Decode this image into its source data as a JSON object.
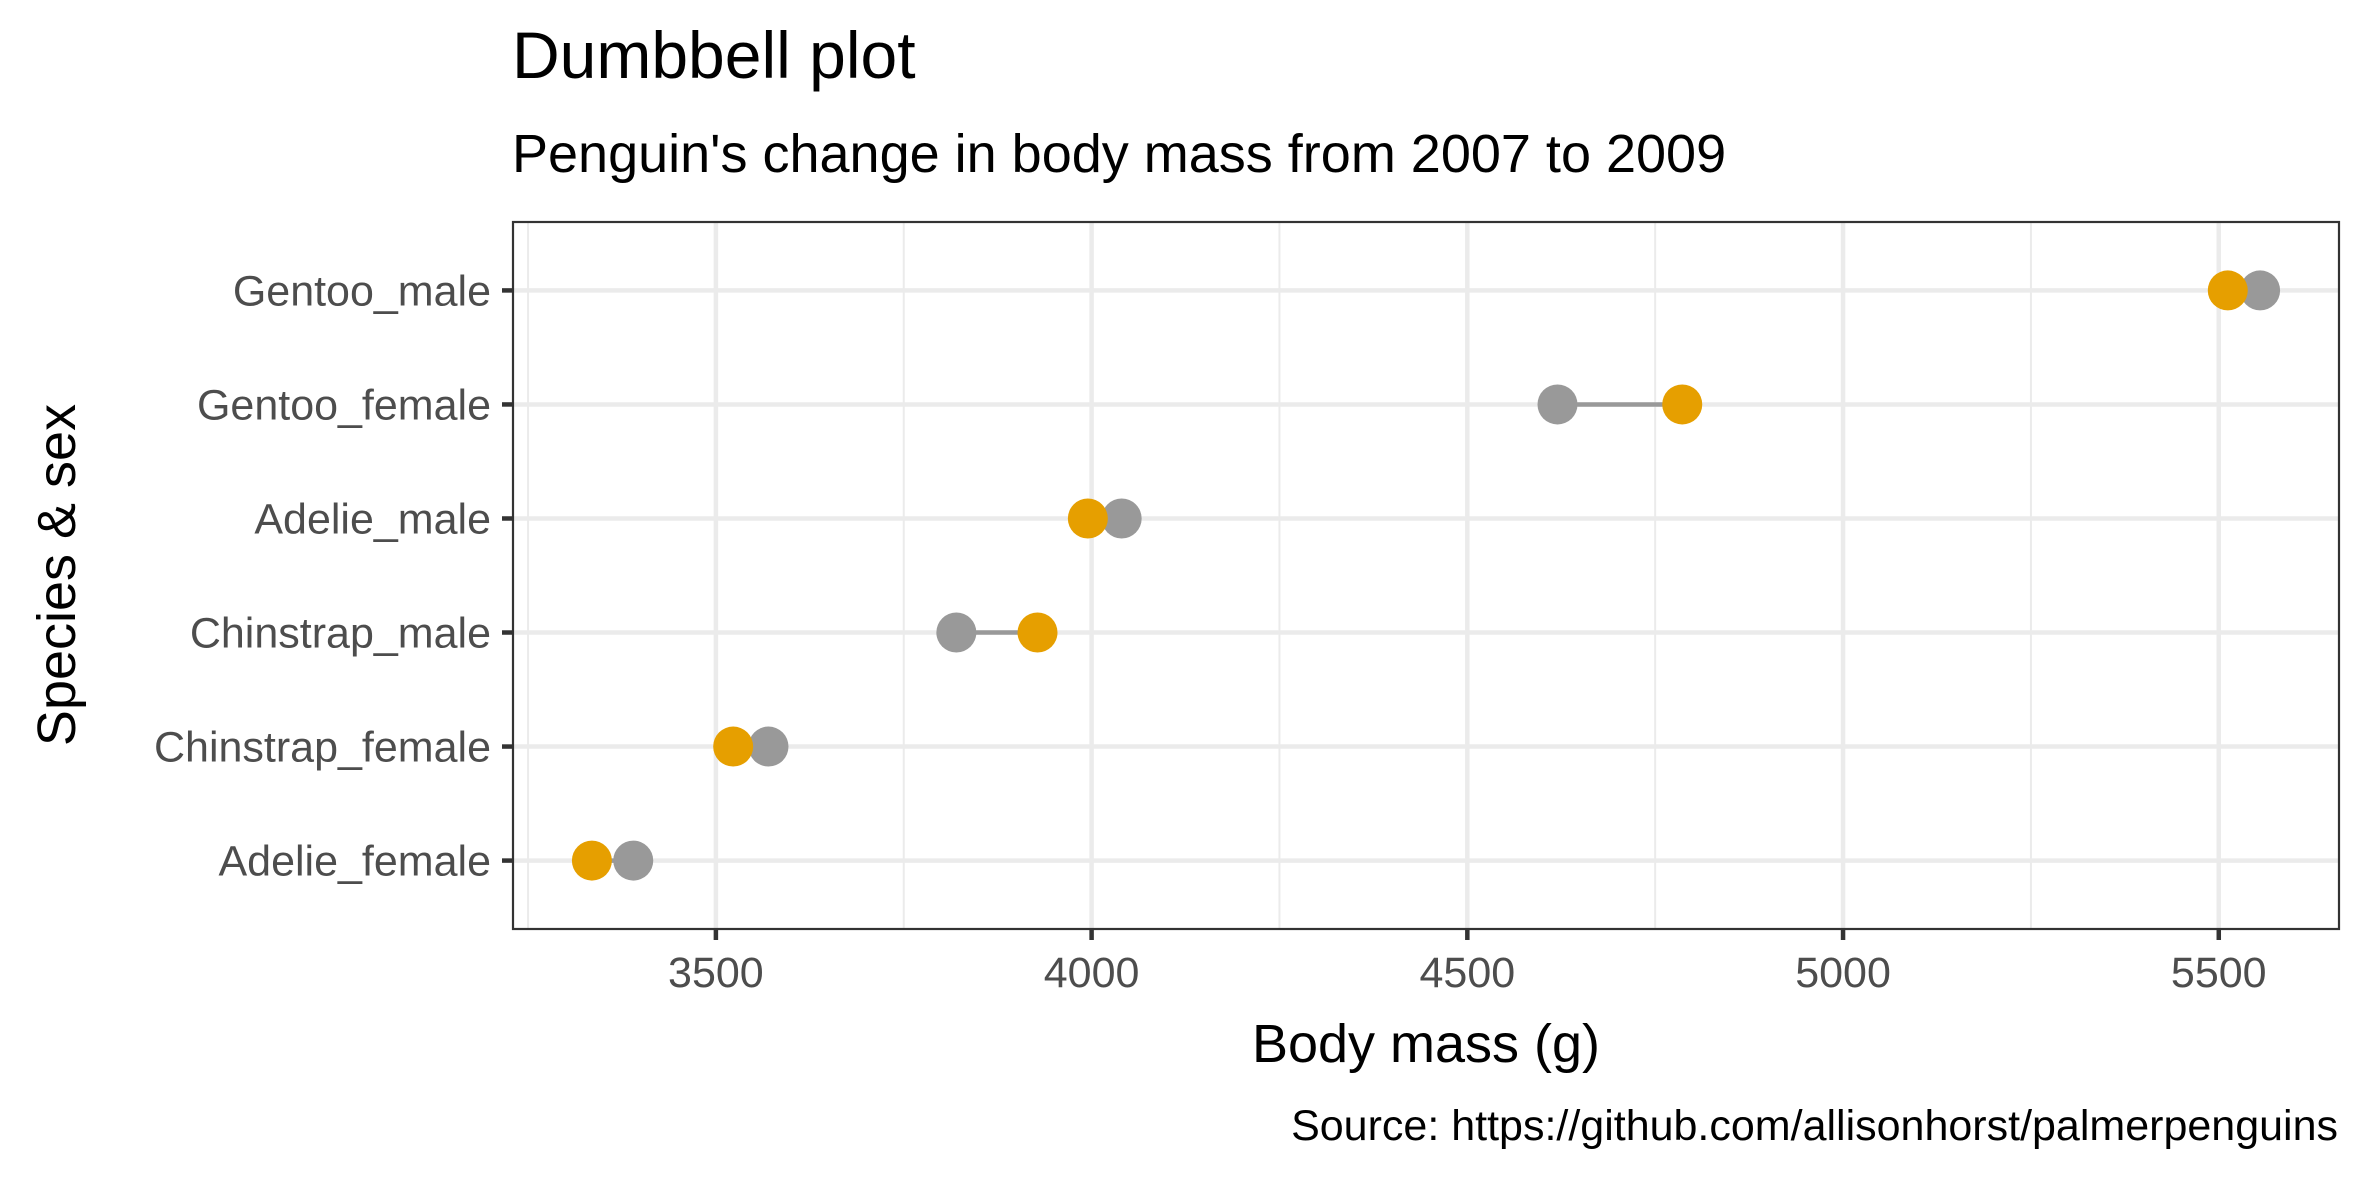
{
  "chart_data": {
    "type": "dumbbell",
    "title": "Dumbbell plot",
    "subtitle": "Penguin's change in body mass from 2007 to 2009",
    "xlabel": "Body mass (g)",
    "ylabel": "Species & sex",
    "caption": "Source: https://github.com/allisonhorst/palmerpenguins",
    "xlim": [
      3230,
      5660
    ],
    "x_ticks": [
      3500,
      4000,
      4500,
      5000,
      5500
    ],
    "x_minor_ticks": [
      3250,
      3750,
      4250,
      4750,
      5250
    ],
    "grid": true,
    "legend": "none",
    "categories": [
      "Adelie_female",
      "Chinstrap_female",
      "Chinstrap_male",
      "Adelie_male",
      "Gentoo_female",
      "Gentoo_male"
    ],
    "series": [
      {
        "values": [
          3390,
          3570,
          3820,
          4040,
          4620,
          5555
        ],
        "color": "#999999"
      },
      {
        "values": [
          3335,
          3523,
          3928,
          3995,
          4786,
          5512
        ],
        "color": "#E69F00"
      }
    ],
    "segment_color": "#999999"
  }
}
